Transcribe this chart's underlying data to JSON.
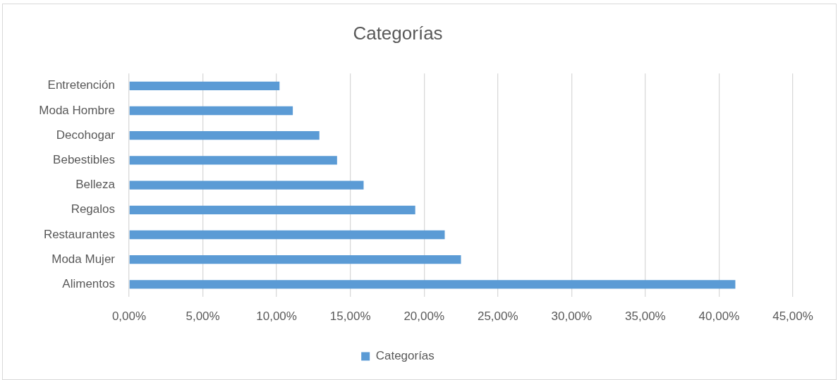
{
  "chart_data": {
    "type": "bar",
    "orientation": "horizontal",
    "title": "Categorías",
    "categories": [
      "Entretención",
      "Moda Hombre",
      "Decohogar",
      "Bebestibles",
      "Belleza",
      "Regalos",
      "Restaurantes",
      "Moda Mujer",
      "Alimentos"
    ],
    "series": [
      {
        "name": "Categorías",
        "color": "#5b9bd5",
        "values": [
          10.2,
          11.1,
          12.9,
          14.1,
          15.9,
          19.4,
          21.4,
          22.5,
          41.1
        ]
      }
    ],
    "xlim": [
      0,
      45
    ],
    "xticks": [
      {
        "value": 0,
        "label": "0,00%"
      },
      {
        "value": 5,
        "label": "5,00%"
      },
      {
        "value": 10,
        "label": "10,00%"
      },
      {
        "value": 15,
        "label": "15,00%"
      },
      {
        "value": 20,
        "label": "20,00%"
      },
      {
        "value": 25,
        "label": "25,00%"
      },
      {
        "value": 30,
        "label": "30,00%"
      },
      {
        "value": 35,
        "label": "35,00%"
      },
      {
        "value": 40,
        "label": "40,00%"
      },
      {
        "value": 45,
        "label": "45,00%"
      }
    ],
    "grid": "x",
    "legend": "bottom"
  }
}
